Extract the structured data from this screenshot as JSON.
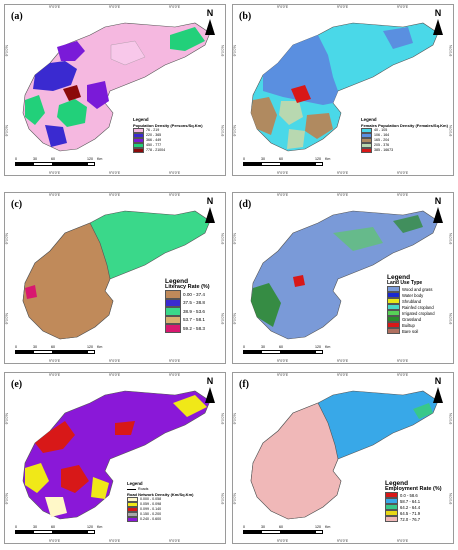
{
  "ticks": {
    "top": [
      "9°0'0\"E",
      "9°0'0\"E",
      "9°0'0\"E"
    ],
    "bottom": [
      "9°0'0\"E",
      "9°0'0\"E",
      "9°0'0\"E"
    ],
    "left": [
      "9°0'0\"N",
      "9°0'0\"N"
    ],
    "right": [
      "9°0'0\"N",
      "9°0'0\"N"
    ]
  },
  "north": "N",
  "scale": {
    "labels": [
      "0",
      "30",
      "60",
      "120"
    ],
    "unit": "Km"
  },
  "panels": [
    {
      "label": "(a)",
      "legend_heading": "Legend",
      "legend_title": "Population Density (Persons/Sq.Km)",
      "classes": [
        {
          "label": "76 - 219",
          "color": "#f5b8e0"
        },
        {
          "label": "220 - 365",
          "color": "#3a2ad0"
        },
        {
          "label": "366 - 449",
          "color": "#7a1ad8"
        },
        {
          "label": "450 - 777",
          "color": "#22d07a"
        },
        {
          "label": "778 - 21004",
          "color": "#8b0a0a"
        }
      ]
    },
    {
      "label": "(b)",
      "legend_heading": "Legend",
      "legend_title": "Females Population Density (Females/Sq.Km)",
      "classes": [
        {
          "label": "40 - 105",
          "color": "#4ad8e8"
        },
        {
          "label": "106 - 164",
          "color": "#5a8fe0"
        },
        {
          "label": "165 - 204",
          "color": "#b08a60"
        },
        {
          "label": "205 - 376",
          "color": "#b8d8b0"
        },
        {
          "label": "385 - 16673",
          "color": "#d81818"
        }
      ]
    },
    {
      "label": "(c)",
      "legend_heading": "Legend",
      "legend_title": "Literacy Rate (%)",
      "classes": [
        {
          "label": "0.00 - 37.4",
          "color": "#c08a5a"
        },
        {
          "label": "37.5 - 38.8",
          "color": "#3a2ad0"
        },
        {
          "label": "38.9 - 53.6",
          "color": "#3ad88a"
        },
        {
          "label": "53.7 - 58.1",
          "color": "#d8b070"
        },
        {
          "label": "59.2 - 58.3",
          "color": "#d81870"
        }
      ]
    },
    {
      "label": "(d)",
      "legend_heading": "Legend",
      "legend_title": "Land Use Type",
      "classes": [
        {
          "label": "Wood and grass",
          "color": "#7a9ad8"
        },
        {
          "label": "Water body",
          "color": "#1a28d0"
        },
        {
          "label": "Shrubland",
          "color": "#e8e818"
        },
        {
          "label": "Rainfed cropland",
          "color": "#4ad8c8"
        },
        {
          "label": "Irrigated cropland",
          "color": "#58d058"
        },
        {
          "label": "Grassland",
          "color": "#2a8a2a"
        },
        {
          "label": "Builtup",
          "color": "#d81818"
        },
        {
          "label": "Bare soil",
          "color": "#b07060"
        }
      ]
    },
    {
      "label": "(e)",
      "legend_heading": "Legend",
      "legend_title": "Road Network Density (Km/Sq.Km)",
      "roads_label": "Roads",
      "classes": [
        {
          "label": "0.000 - 0.058",
          "color": "#fff8c8"
        },
        {
          "label": "0.059 - 0.098",
          "color": "#f0e818"
        },
        {
          "label": "0.099 - 0.140",
          "color": "#d81818"
        },
        {
          "label": "0.150 - 0.200",
          "color": "#a8a8a8"
        },
        {
          "label": "0.240 - 0.600",
          "color": "#8a18d8"
        }
      ]
    },
    {
      "label": "(f)",
      "legend_heading": "Legend",
      "legend_title": "Employment Rate (%)",
      "classes": [
        {
          "label": "0.0 - 58.6",
          "color": "#d81818"
        },
        {
          "label": "58.7 - 64.1",
          "color": "#38a8e8"
        },
        {
          "label": "64.2 - 64.4",
          "color": "#38c88a"
        },
        {
          "label": "64.5 - 71.9",
          "color": "#e8d818"
        },
        {
          "label": "72.0 - 76.7",
          "color": "#f0b8b8"
        }
      ]
    }
  ]
}
